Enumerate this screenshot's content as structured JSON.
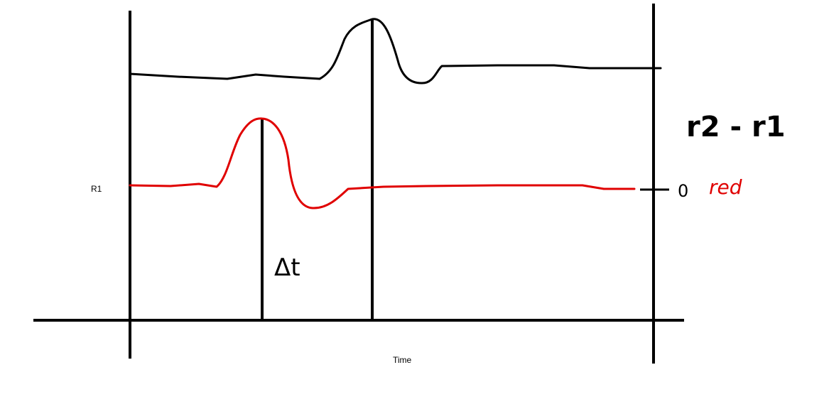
{
  "labels": {
    "r1_axis": "R1",
    "time_axis": "Time",
    "difference": "r2 - r1",
    "delta_t": "Δt",
    "zero": "0",
    "red_note": "red"
  },
  "colors": {
    "ink": "#000000",
    "red_signal": "#e00000",
    "background": "#ffffff"
  }
}
